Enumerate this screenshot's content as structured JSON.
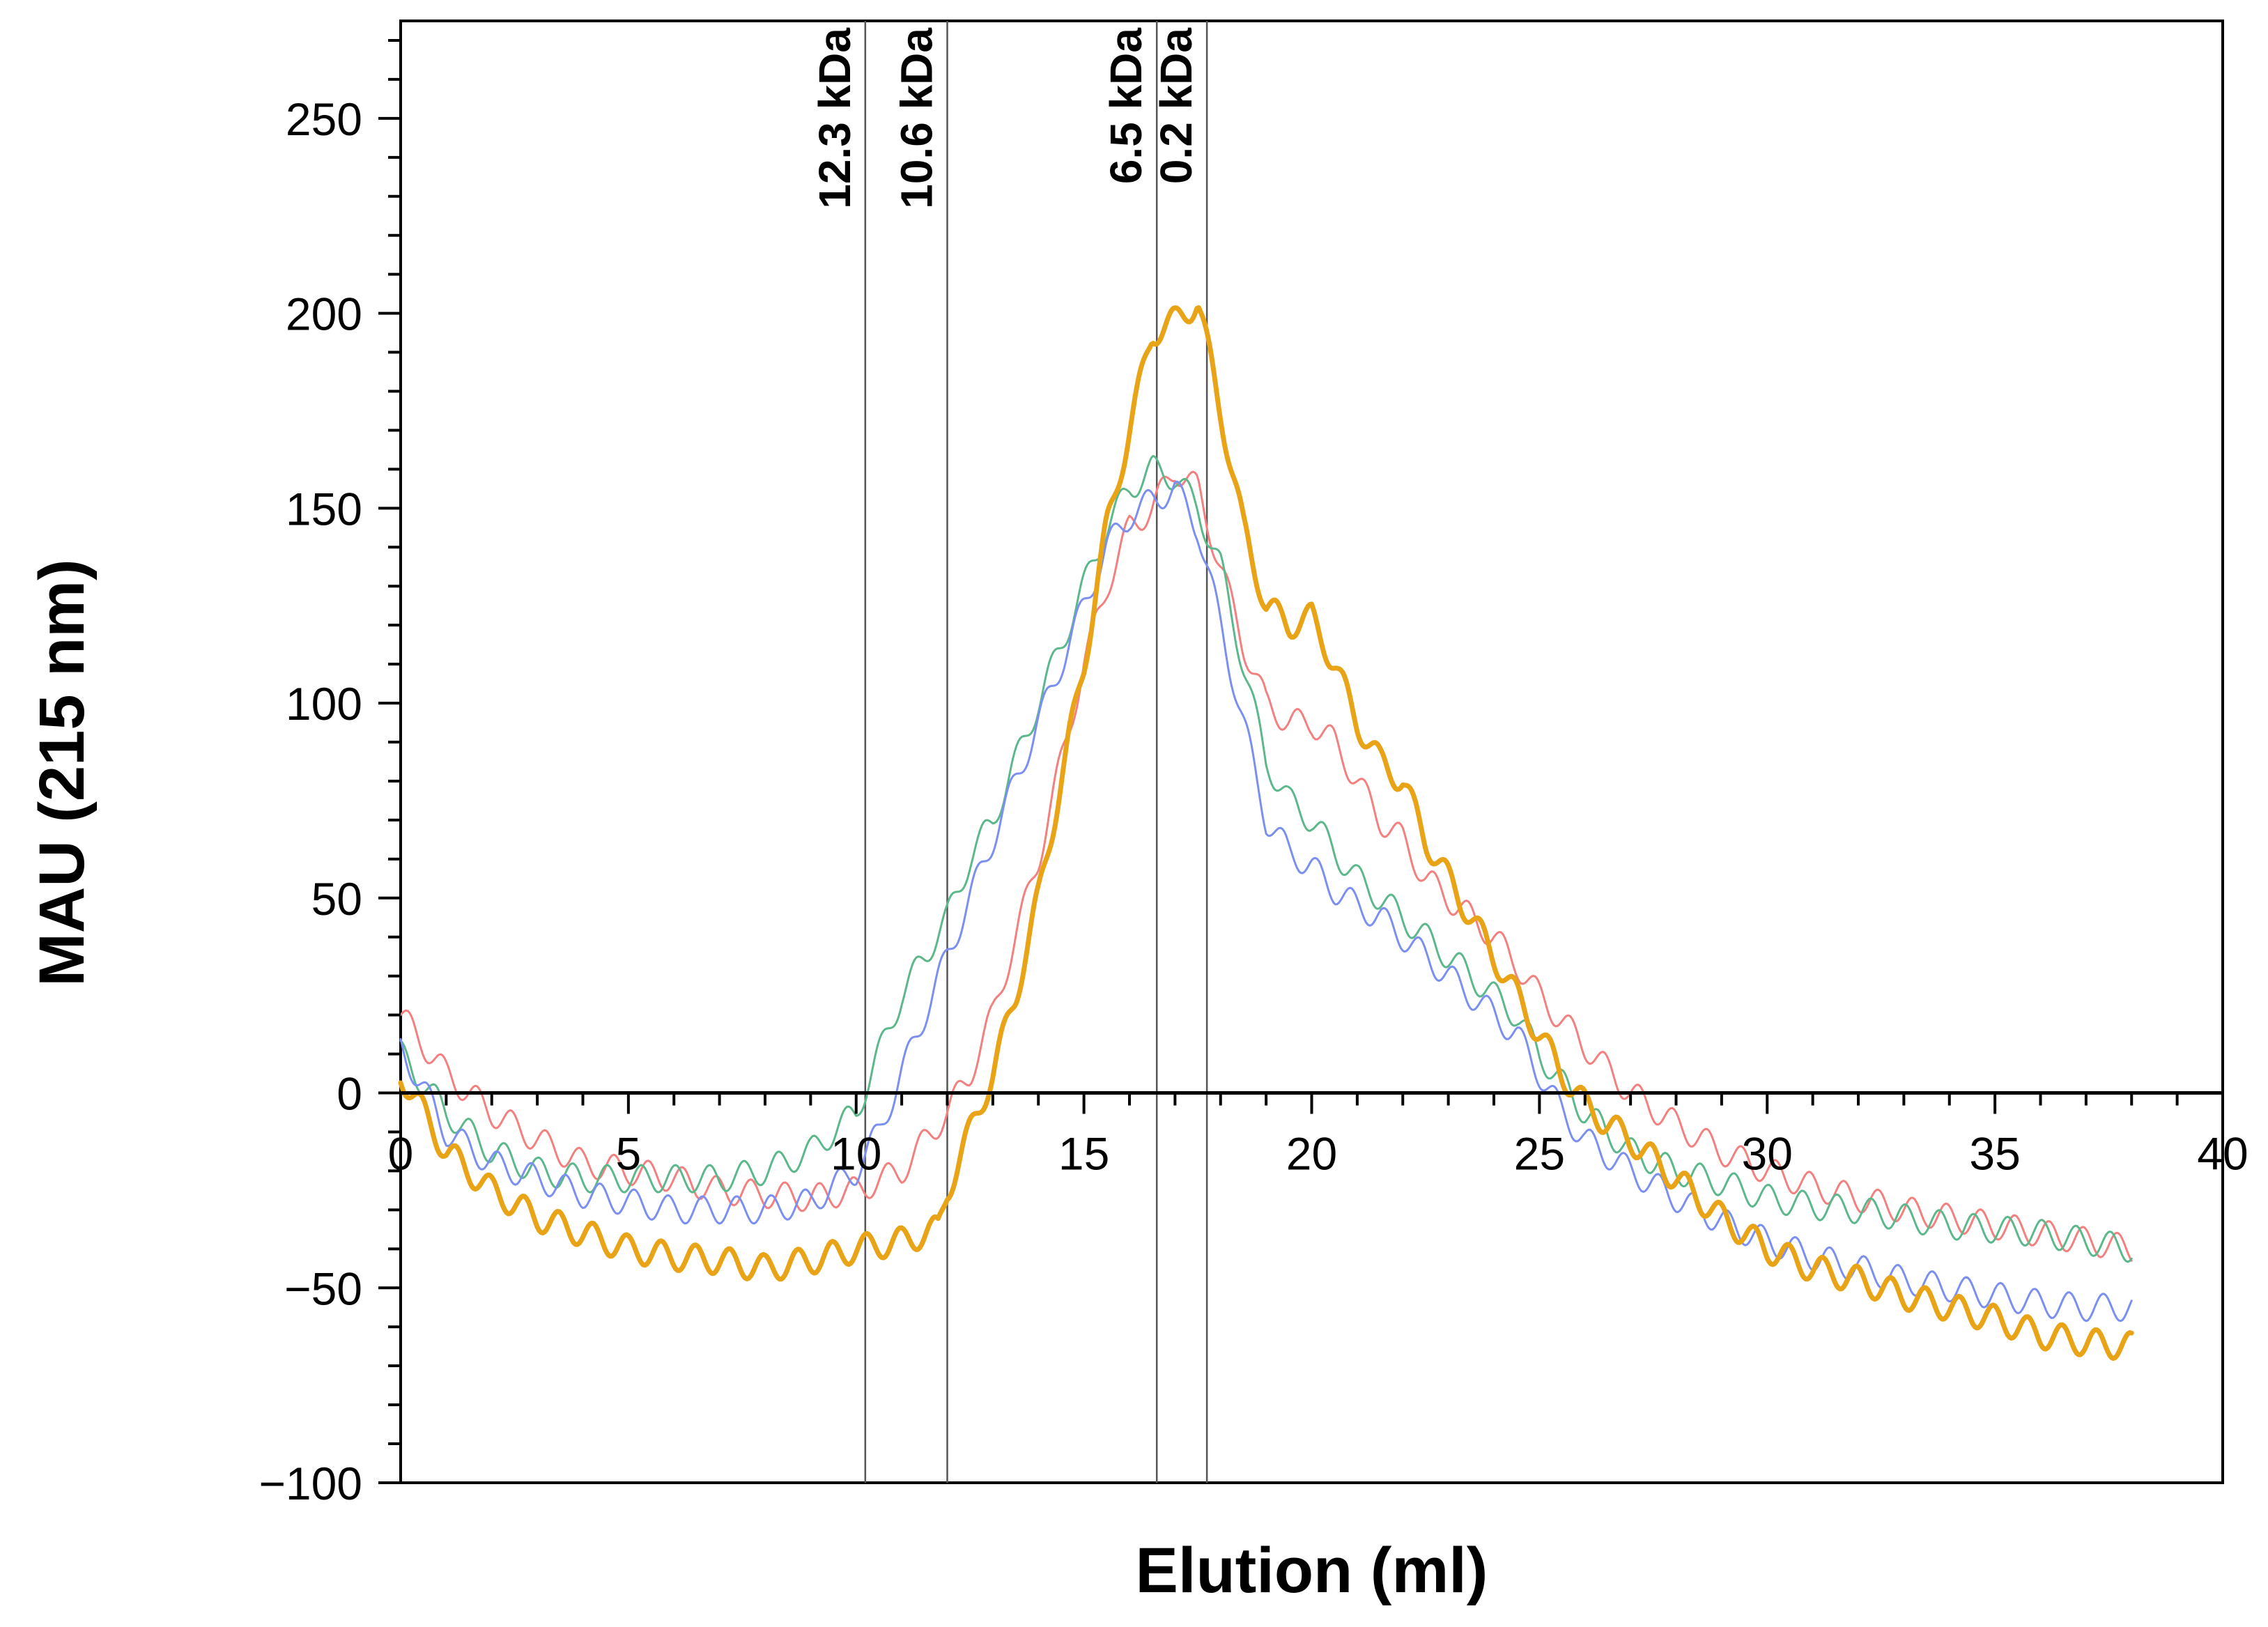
{
  "chart_data": {
    "type": "line",
    "title": "",
    "xlabel": "Elution (ml)",
    "ylabel": "MAU (215 nm)",
    "xlim": [
      0,
      40
    ],
    "ylim": [
      -100,
      275
    ],
    "xticks": [
      0,
      5,
      10,
      15,
      20,
      25,
      30,
      35,
      40
    ],
    "xtick_labels": [
      "0",
      "5",
      "10",
      "15",
      "20",
      "25",
      "30",
      "35",
      "40"
    ],
    "yticks": [
      -100,
      -50,
      0,
      50,
      100,
      150,
      200,
      250
    ],
    "ytick_labels": [
      "−100",
      "−50",
      "0",
      "50",
      "100",
      "150",
      "200",
      "250"
    ],
    "grid": false,
    "markers": [
      {
        "x": 10.2,
        "label": "12.3 kDa"
      },
      {
        "x": 12.0,
        "label": "10.6 kDa"
      },
      {
        "x": 16.6,
        "label": "6.5 kDa"
      },
      {
        "x": 17.7,
        "label": "0.2 kDa"
      }
    ],
    "series": [
      {
        "name": "orange",
        "color": "#e8a317",
        "width": 7,
        "x": [
          0,
          1,
          2,
          3,
          4,
          5,
          6,
          7,
          8,
          9,
          10,
          11,
          11.8,
          12,
          12.5,
          13,
          13.5,
          14,
          14.5,
          15,
          15.5,
          16,
          16.5,
          17,
          17.5,
          18,
          18.5,
          19,
          19.5,
          20,
          20.5,
          21,
          21.5,
          22,
          22.5,
          23,
          23.5,
          24,
          24.5,
          25,
          25.5,
          26,
          26.5,
          27,
          28,
          29,
          30,
          31,
          32,
          33,
          34,
          35,
          36,
          37,
          38
        ],
        "y": [
          5,
          -15,
          -25,
          -32,
          -36,
          -40,
          -42,
          -43,
          -45,
          -43,
          -40,
          -38,
          -35,
          -25,
          -10,
          5,
          25,
          50,
          80,
          110,
          145,
          170,
          195,
          198,
          203,
          175,
          145,
          125,
          120,
          122,
          110,
          95,
          85,
          80,
          65,
          55,
          45,
          35,
          25,
          15,
          5,
          -3,
          -8,
          -12,
          -22,
          -32,
          -40,
          -45,
          -48,
          -52,
          -55,
          -58,
          -62,
          -64,
          -65
        ]
      },
      {
        "name": "red",
        "color": "#f2807e",
        "width": 3,
        "x": [
          0,
          1,
          2,
          3,
          4,
          5,
          6,
          7,
          8,
          9,
          10,
          11,
          12,
          12.5,
          13,
          13.5,
          14,
          14.5,
          15,
          15.5,
          16,
          16.5,
          17,
          17.5,
          18,
          18.5,
          19,
          19.5,
          20,
          20.5,
          21,
          21.5,
          22,
          22.5,
          23,
          23.5,
          24,
          24.5,
          25,
          26,
          27,
          28,
          29,
          30,
          31,
          32,
          33,
          34,
          35,
          36,
          37,
          38
        ],
        "y": [
          20,
          5,
          -5,
          -12,
          -18,
          -20,
          -22,
          -25,
          -26,
          -27,
          -25,
          -20,
          -5,
          5,
          20,
          40,
          60,
          85,
          110,
          130,
          145,
          150,
          160,
          155,
          135,
          115,
          100,
          95,
          95,
          90,
          80,
          70,
          65,
          55,
          50,
          45,
          40,
          33,
          25,
          12,
          0,
          -8,
          -15,
          -20,
          -24,
          -27,
          -30,
          -32,
          -34,
          -36,
          -38,
          -40
        ]
      },
      {
        "name": "green",
        "color": "#5cb88a",
        "width": 3,
        "x": [
          0,
          1,
          2,
          3,
          4,
          5,
          6,
          7,
          8,
          9,
          10,
          10.5,
          11,
          11.5,
          12,
          12.5,
          13,
          13.5,
          14,
          14.5,
          15,
          15.5,
          16,
          16.5,
          17,
          17.5,
          18,
          18.5,
          19,
          19.5,
          20,
          20.5,
          21,
          21.5,
          22,
          22.5,
          23,
          23.5,
          24,
          24.5,
          25,
          26,
          27,
          28,
          29,
          30,
          31,
          32,
          33,
          34,
          35,
          36,
          37,
          38
        ],
        "y": [
          10,
          -5,
          -15,
          -20,
          -22,
          -22,
          -22,
          -22,
          -20,
          -15,
          -5,
          10,
          25,
          35,
          45,
          60,
          70,
          85,
          100,
          115,
          130,
          145,
          155,
          160,
          158,
          150,
          135,
          110,
          85,
          75,
          70,
          62,
          55,
          50,
          45,
          40,
          35,
          30,
          25,
          20,
          10,
          -5,
          -15,
          -20,
          -23,
          -27,
          -29,
          -30,
          -32,
          -34,
          -35,
          -36,
          -38,
          -40
        ]
      },
      {
        "name": "blue",
        "color": "#7b8ff0",
        "width": 3,
        "x": [
          0,
          1,
          2,
          3,
          4,
          5,
          6,
          7,
          8,
          9,
          10,
          10.5,
          11,
          11.5,
          12,
          12.5,
          13,
          13.5,
          14,
          14.5,
          15,
          15.5,
          16,
          16.5,
          17,
          17.5,
          18,
          18.5,
          19,
          19.5,
          20,
          20.5,
          21,
          21.5,
          22,
          22.5,
          23,
          23.5,
          24,
          24.5,
          25,
          25.5,
          26,
          27,
          28,
          29,
          30,
          31,
          32,
          33,
          34,
          35,
          36,
          37,
          38
        ],
        "y": [
          12,
          -10,
          -18,
          -22,
          -26,
          -28,
          -30,
          -30,
          -30,
          -28,
          -20,
          -10,
          5,
          20,
          35,
          50,
          65,
          80,
          95,
          110,
          125,
          140,
          148,
          152,
          155,
          145,
          120,
          95,
          70,
          62,
          58,
          52,
          48,
          45,
          40,
          35,
          30,
          25,
          20,
          15,
          5,
          -5,
          -12,
          -20,
          -27,
          -33,
          -38,
          -42,
          -45,
          -48,
          -50,
          -52,
          -54,
          -55,
          -55
        ]
      }
    ]
  }
}
